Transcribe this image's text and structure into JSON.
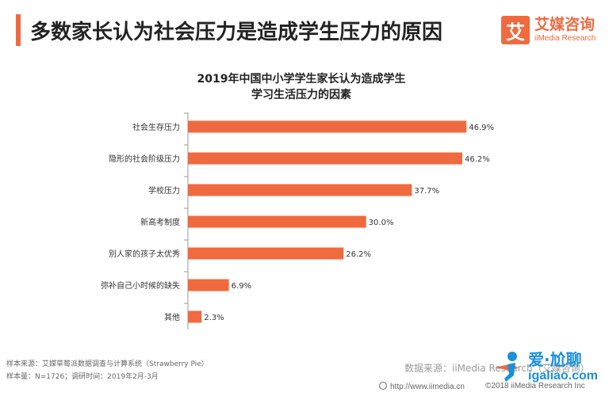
{
  "header": {
    "title": "多数家长认为社会压力是造成学生压力的原因",
    "logo_mark": "艾",
    "logo_cn": "艾媒咨询",
    "logo_en": "iiMedia Research"
  },
  "colors": {
    "accent": "#ef6a3f",
    "bar": "#ef6a3f",
    "watermark": "#1a8fdc"
  },
  "chart_data": {
    "type": "bar",
    "orientation": "horizontal",
    "title_lines": [
      "2019年中国中小学学生家长认为造成学生",
      "学习生活压力的因素"
    ],
    "categories": [
      "社会生存压力",
      "隐形的社会阶级压力",
      "学校压力",
      "新高考制度",
      "别人家的孩子太优秀",
      "弥补自己小时候的缺失",
      "其他"
    ],
    "values": [
      46.9,
      46.2,
      37.7,
      30.0,
      26.2,
      6.9,
      2.3
    ],
    "value_labels": [
      "46.9%",
      "46.2%",
      "37.7%",
      "30.0%",
      "26.2%",
      "6.9%",
      "2.3%"
    ],
    "unit": "%",
    "xlim": [
      0,
      47
    ],
    "grid": false,
    "legend": "none"
  },
  "footer": {
    "sample_source": "样本来源：艾媒草莓派数据调查与计算系统（Strawberry Pie）",
    "sample_size": "样本量：N=1726；调研时间：2019年2月-3月",
    "data_source": "数据来源：iiMedia Research（艾媒咨询）",
    "url": "http://www.iimedia.cn",
    "copyright": "©2018 iiMedia Research Inc",
    "icon": "globe-icon"
  },
  "watermark": {
    "top": "爱·尬聊",
    "bottom": "igaliao.com"
  }
}
